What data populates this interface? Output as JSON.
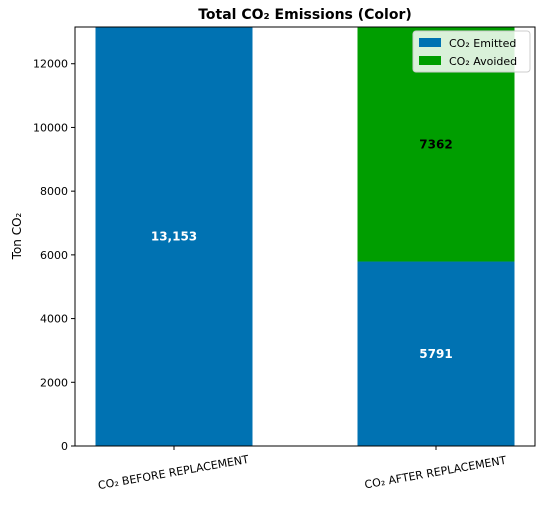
{
  "chart_data": {
    "type": "bar",
    "stacked": true,
    "title": "Total CO₂ Emissions (Color)",
    "xlabel": "",
    "ylabel": "Ton CO₂",
    "categories": [
      "CO₂ BEFORE REPLACEMENT",
      "CO₂ AFTER REPLACEMENT"
    ],
    "series": [
      {
        "name": "CO₂ Emitted",
        "color": "#0072b2",
        "values": [
          13153,
          5791
        ],
        "data_labels": [
          "13,153",
          "5791"
        ],
        "label_color": "#ffffff"
      },
      {
        "name": "CO₂ Avoided",
        "color": "#009e00",
        "values": [
          0,
          7362
        ],
        "data_labels": [
          "",
          "7362"
        ],
        "label_color": "#000000"
      }
    ],
    "ylim": [
      0,
      13153
    ],
    "yticks": [
      0,
      2000,
      4000,
      6000,
      8000,
      10000,
      12000
    ],
    "grid": false,
    "legend_position": "top-right"
  }
}
